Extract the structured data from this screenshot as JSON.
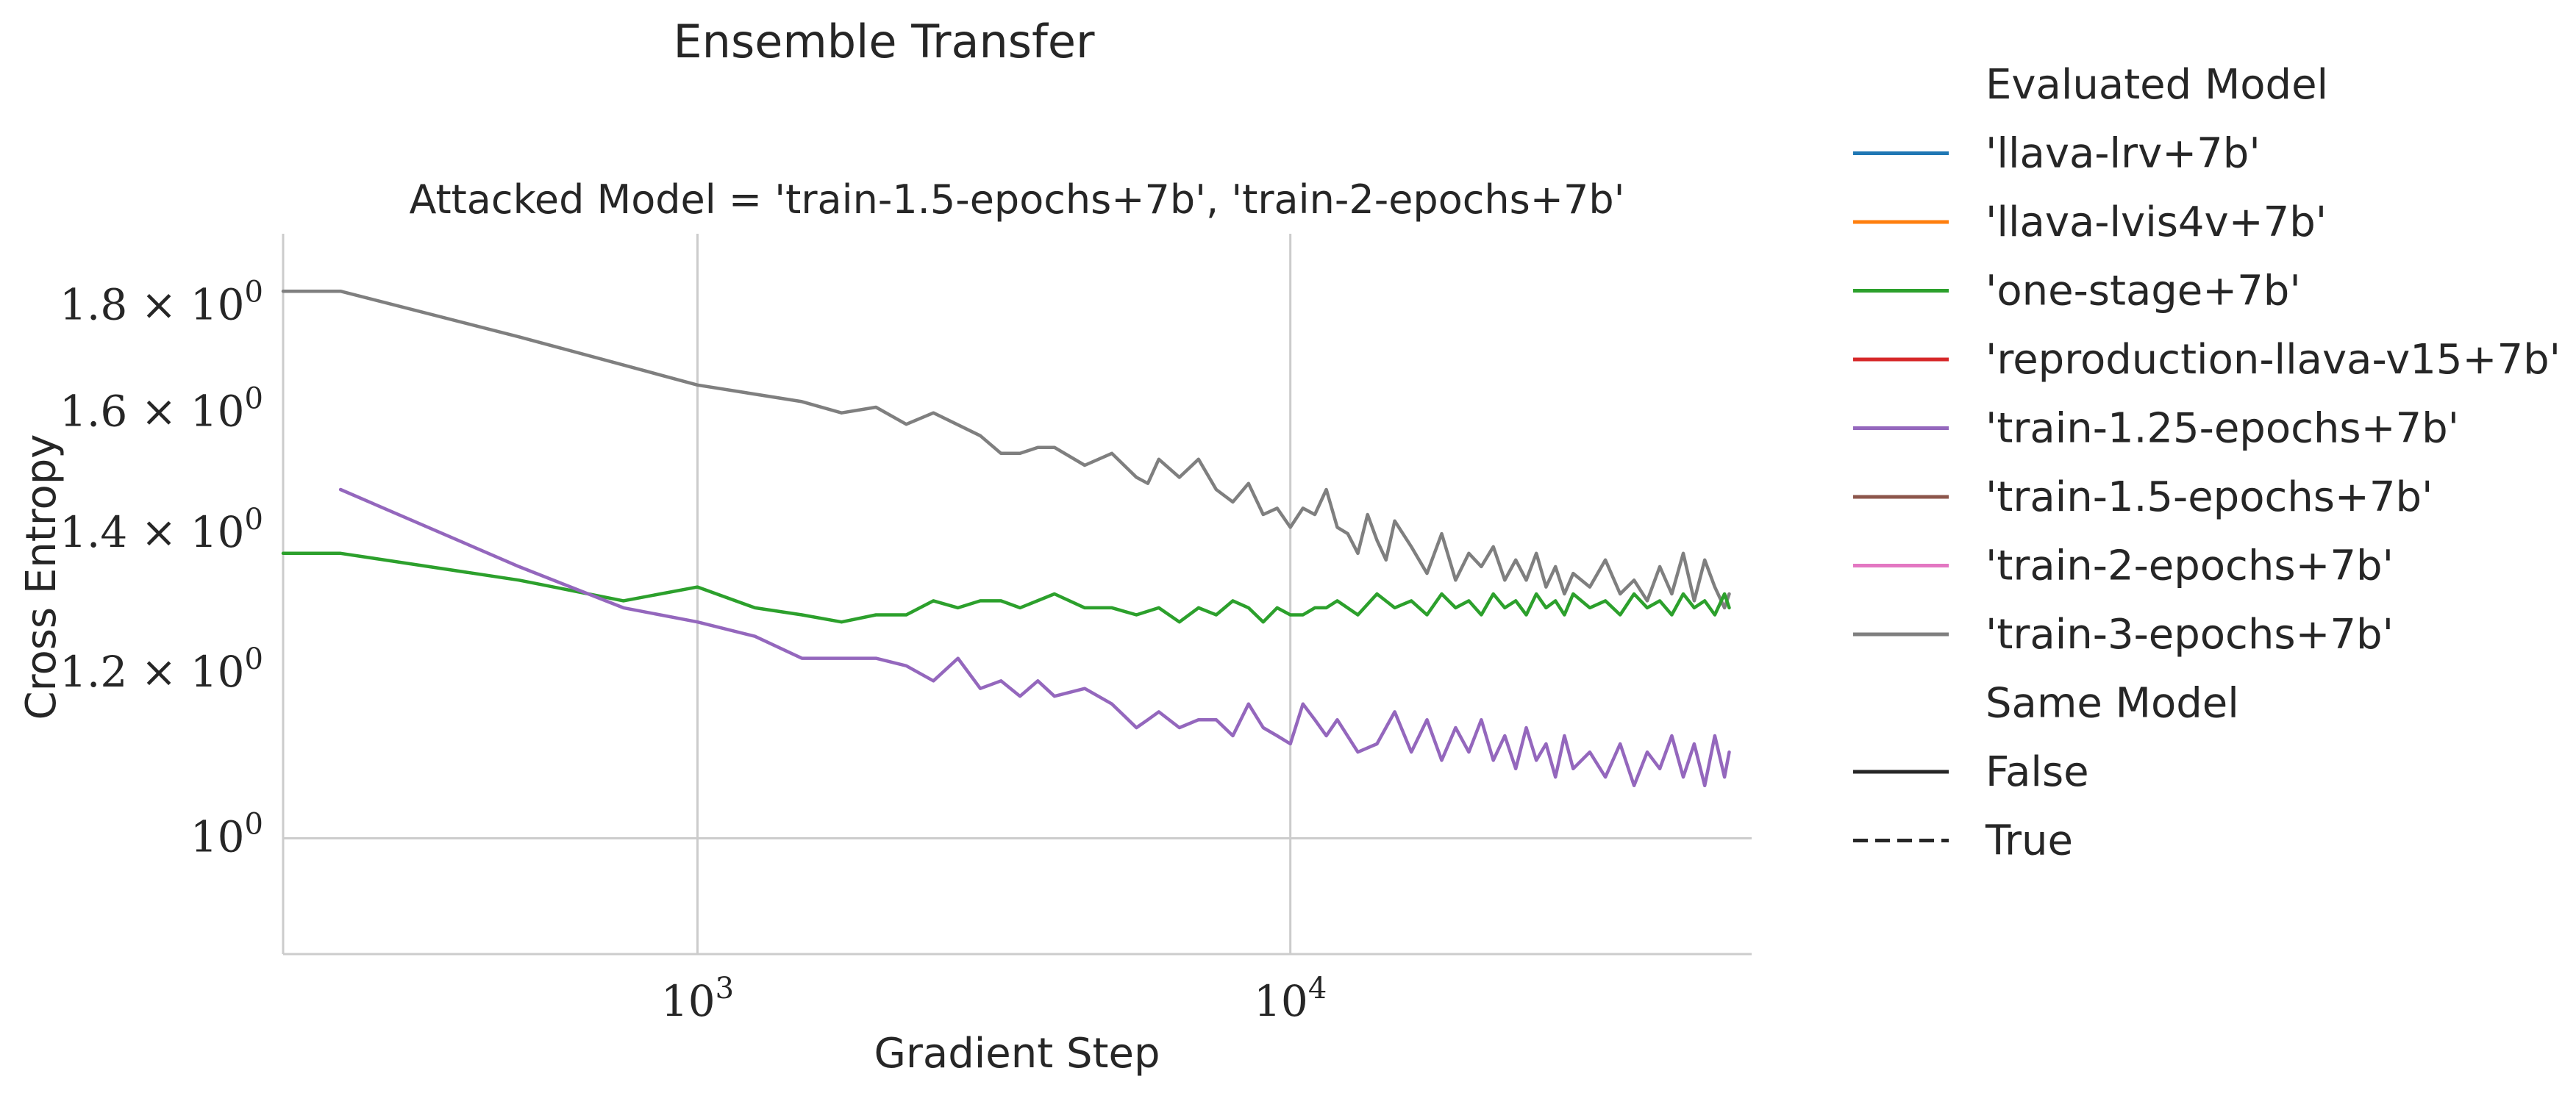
{
  "chart_data": {
    "type": "line",
    "title": "Ensemble Transfer",
    "subtitle": "Attacked Model = 'train-1.5-epochs+7b', 'train-2-epochs+7b'",
    "xlabel": "Gradient Step",
    "ylabel": "Cross Entropy",
    "x_scale": "log",
    "y_scale": "log",
    "xlim": [
      200,
      60000
    ],
    "ylim": [
      0.88,
      1.95
    ],
    "x_ticks": [
      {
        "value": 1000,
        "base": "10",
        "exp": "3"
      },
      {
        "value": 10000,
        "base": "10",
        "exp": "4"
      }
    ],
    "y_ticks": [
      {
        "value": 1.0,
        "mant": "",
        "base": "10",
        "exp": "0"
      },
      {
        "value": 1.2,
        "mant": "1.2 × ",
        "base": "10",
        "exp": "0"
      },
      {
        "value": 1.4,
        "mant": "1.4 × ",
        "base": "10",
        "exp": "0"
      },
      {
        "value": 1.6,
        "mant": "1.6 × ",
        "base": "10",
        "exp": "0"
      },
      {
        "value": 1.8,
        "mant": "1.8 × ",
        "base": "10",
        "exp": "0"
      }
    ],
    "grid": true,
    "legend_placement": "outside-right",
    "legend": {
      "hue_title": "Evaluated Model",
      "hue_entries": [
        {
          "label": "'llava-lrv+7b'",
          "color": "#1f77b4"
        },
        {
          "label": "'llava-lvis4v+7b'",
          "color": "#ff7f0e"
        },
        {
          "label": "'one-stage+7b'",
          "color": "#2ca02c"
        },
        {
          "label": "'reproduction-llava-v15+7b'",
          "color": "#d62728"
        },
        {
          "label": "'train-1.25-epochs+7b'",
          "color": "#9467bd"
        },
        {
          "label": "'train-1.5-epochs+7b'",
          "color": "#8c564b"
        },
        {
          "label": "'train-2-epochs+7b'",
          "color": "#e377c2"
        },
        {
          "label": "'train-3-epochs+7b'",
          "color": "#7f7f7f"
        }
      ],
      "style_title": "Same Model",
      "style_entries": [
        {
          "label": "False",
          "dash": "solid"
        },
        {
          "label": "True",
          "dash": "dashed"
        }
      ]
    },
    "series": [
      {
        "evaluated_model": "'train-3-epochs+7b'",
        "same_model": "False",
        "color": "#7f7f7f",
        "x": [
          200,
          250,
          500,
          1000,
          1500,
          1750,
          2000,
          2250,
          2500,
          3000,
          3250,
          3500,
          3750,
          4000,
          4500,
          5000,
          5500,
          5750,
          6000,
          6500,
          7000,
          7500,
          8000,
          8500,
          9000,
          9500,
          10000,
          10500,
          11000,
          11500,
          12000,
          12500,
          13000,
          13500,
          14000,
          14500,
          15000,
          16000,
          17000,
          18000,
          19000,
          20000,
          21000,
          22000,
          23000,
          24000,
          25000,
          26000,
          27000,
          28000,
          29000,
          30000,
          32000,
          34000,
          36000,
          38000,
          40000,
          42000,
          44000,
          46000,
          48000,
          50000,
          52000,
          54000,
          55000
        ],
        "y": [
          1.83,
          1.83,
          1.74,
          1.65,
          1.62,
          1.6,
          1.61,
          1.58,
          1.6,
          1.56,
          1.53,
          1.53,
          1.54,
          1.54,
          1.51,
          1.53,
          1.49,
          1.48,
          1.52,
          1.49,
          1.52,
          1.47,
          1.45,
          1.48,
          1.43,
          1.44,
          1.41,
          1.44,
          1.43,
          1.47,
          1.41,
          1.4,
          1.37,
          1.43,
          1.39,
          1.36,
          1.42,
          1.38,
          1.34,
          1.4,
          1.33,
          1.37,
          1.35,
          1.38,
          1.33,
          1.36,
          1.33,
          1.37,
          1.32,
          1.35,
          1.31,
          1.34,
          1.32,
          1.36,
          1.31,
          1.33,
          1.3,
          1.35,
          1.31,
          1.37,
          1.3,
          1.36,
          1.32,
          1.29,
          1.31
        ]
      },
      {
        "evaluated_model": "'one-stage+7b'",
        "same_model": "False",
        "color": "#2ca02c",
        "x": [
          200,
          250,
          500,
          750,
          1000,
          1250,
          1500,
          1750,
          2000,
          2250,
          2500,
          2750,
          3000,
          3250,
          3500,
          4000,
          4500,
          5000,
          5500,
          6000,
          6500,
          7000,
          7500,
          8000,
          8500,
          9000,
          9500,
          10000,
          10500,
          11000,
          11500,
          12000,
          13000,
          14000,
          15000,
          16000,
          17000,
          18000,
          19000,
          20000,
          21000,
          22000,
          23000,
          24000,
          25000,
          26000,
          27000,
          28000,
          29000,
          30000,
          32000,
          34000,
          36000,
          38000,
          40000,
          42000,
          44000,
          46000,
          48000,
          50000,
          52000,
          54000,
          55000
        ],
        "y": [
          1.37,
          1.37,
          1.33,
          1.3,
          1.32,
          1.29,
          1.28,
          1.27,
          1.28,
          1.28,
          1.3,
          1.29,
          1.3,
          1.3,
          1.29,
          1.31,
          1.29,
          1.29,
          1.28,
          1.29,
          1.27,
          1.29,
          1.28,
          1.3,
          1.29,
          1.27,
          1.29,
          1.28,
          1.28,
          1.29,
          1.29,
          1.3,
          1.28,
          1.31,
          1.29,
          1.3,
          1.28,
          1.31,
          1.29,
          1.3,
          1.28,
          1.31,
          1.29,
          1.3,
          1.28,
          1.31,
          1.29,
          1.3,
          1.28,
          1.31,
          1.29,
          1.3,
          1.28,
          1.31,
          1.29,
          1.3,
          1.28,
          1.31,
          1.29,
          1.3,
          1.28,
          1.31,
          1.29
        ]
      },
      {
        "evaluated_model": "'train-1.25-epochs+7b'",
        "same_model": "False",
        "color": "#9467bd",
        "x": [
          250,
          500,
          750,
          1000,
          1250,
          1500,
          2000,
          2250,
          2500,
          2750,
          3000,
          3250,
          3500,
          3750,
          4000,
          4500,
          5000,
          5500,
          5750,
          6000,
          6500,
          7000,
          7500,
          8000,
          8500,
          9000,
          9500,
          10000,
          10500,
          11000,
          11500,
          12000,
          13000,
          14000,
          15000,
          16000,
          17000,
          18000,
          19000,
          20000,
          21000,
          22000,
          23000,
          24000,
          25000,
          26000,
          27000,
          28000,
          29000,
          30000,
          32000,
          34000,
          36000,
          38000,
          40000,
          42000,
          44000,
          46000,
          48000,
          50000,
          52000,
          54000,
          55000
        ],
        "y": [
          1.47,
          1.35,
          1.29,
          1.27,
          1.25,
          1.22,
          1.22,
          1.21,
          1.19,
          1.22,
          1.18,
          1.19,
          1.17,
          1.19,
          1.17,
          1.18,
          1.16,
          1.13,
          1.14,
          1.15,
          1.13,
          1.14,
          1.14,
          1.12,
          1.16,
          1.13,
          1.12,
          1.11,
          1.16,
          1.14,
          1.12,
          1.14,
          1.1,
          1.11,
          1.15,
          1.1,
          1.14,
          1.09,
          1.13,
          1.1,
          1.14,
          1.09,
          1.12,
          1.08,
          1.13,
          1.09,
          1.11,
          1.07,
          1.12,
          1.08,
          1.1,
          1.07,
          1.11,
          1.06,
          1.1,
          1.08,
          1.12,
          1.07,
          1.11,
          1.06,
          1.12,
          1.07,
          1.1
        ]
      }
    ]
  }
}
